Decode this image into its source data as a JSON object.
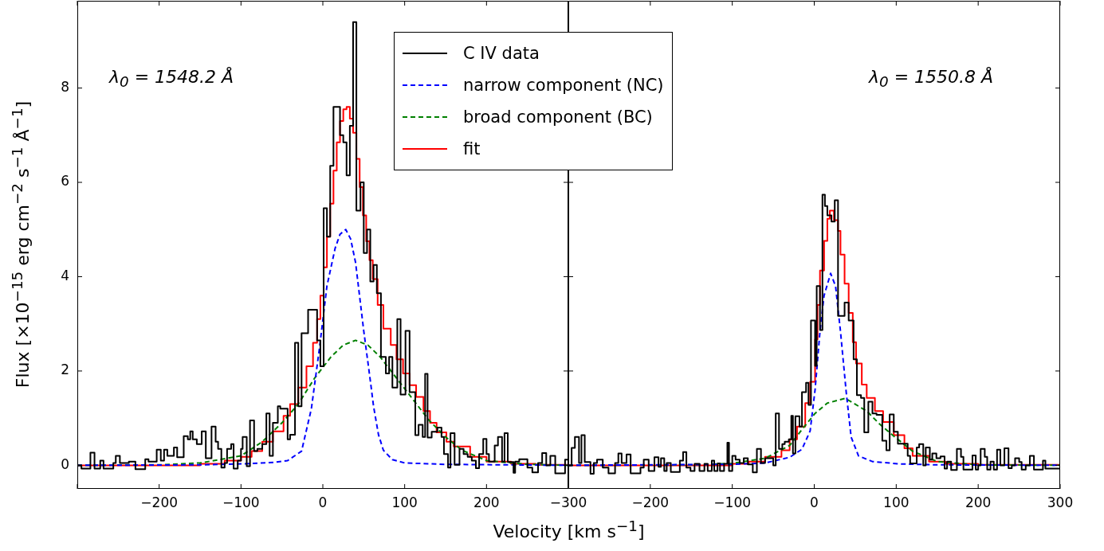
{
  "chart_data": [
    {
      "type": "step",
      "xlabel": "Velocity [km s$^{−1}$]",
      "ylabel": "Flux [×10$^{−15}$ erg cm$^{−2}$ s$^{−1}$ Å$^{−1}$]",
      "annotations": [
        "λ$_{0}$ = 1548.2 Å"
      ],
      "legend": "top right",
      "grid": false,
      "xlim": [
        -300,
        300
      ],
      "xticks": [
        {
          "value": -300,
          "label": null
        },
        {
          "value": -200,
          "label": "−200"
        },
        {
          "value": -100,
          "label": "−100"
        },
        0,
        100,
        200,
        {
          "value": 300,
          "label": null
        }
      ],
      "ylim": [
        -0.5,
        9.85
      ],
      "yticks": [
        0,
        2,
        4,
        6,
        8
      ],
      "series": [
        {
          "name": "C IV data",
          "color": "#000000",
          "x": [
            -300,
            -295,
            -284,
            -279,
            -272,
            -268,
            -256,
            -253,
            -248,
            -237,
            -229,
            -217,
            -213,
            -203,
            -198,
            -194,
            -190,
            -182,
            -178,
            -170,
            -165,
            -162,
            -159,
            -154,
            -148,
            -143,
            -136,
            -131,
            -128,
            -124,
            -120,
            -117,
            -112,
            -109,
            -104,
            -100,
            -98,
            -93,
            -89,
            -84,
            -80,
            -74,
            -69,
            -65,
            -61,
            -55,
            -52,
            -43,
            -40,
            -34,
            -30,
            -26,
            -18,
            -7,
            -3,
            1,
            5,
            9,
            13,
            17,
            21,
            25,
            29,
            33,
            37,
            41,
            46,
            50,
            54,
            58,
            62,
            66,
            71,
            77,
            81,
            85,
            91,
            95,
            101,
            106,
            113,
            117,
            122,
            125,
            128,
            133,
            140,
            145,
            148,
            153,
            156,
            161,
            167,
            172,
            177,
            182,
            187,
            191,
            196,
            200,
            203,
            210,
            214,
            219,
            222,
            226,
            233,
            235,
            240,
            250,
            256,
            263,
            268,
            273,
            278,
            284,
            296,
            300
          ],
          "values": [
            0,
            -0.07,
            0.27,
            -0.07,
            0.1,
            -0.07,
            0.05,
            0.2,
            0.05,
            0.08,
            -0.08,
            0.13,
            0.08,
            0.33,
            0.1,
            0.33,
            0.2,
            0.38,
            0.17,
            0.62,
            0.55,
            0.72,
            0.55,
            0.45,
            0.72,
            0.15,
            0.82,
            0.5,
            0.35,
            -0.05,
            0.05,
            0.35,
            0.45,
            -0.07,
            0.1,
            0.35,
            0.6,
            -0.02,
            0.95,
            0.3,
            0.35,
            0.45,
            1.1,
            0.2,
            0.9,
            1.25,
            1.2,
            0.55,
            0.65,
            2.6,
            1.25,
            2.8,
            3.3,
            2.65,
            2.1,
            5.45,
            4.85,
            6.35,
            7.6,
            7.6,
            7.0,
            6.85,
            6.15,
            7.2,
            9.4,
            5.4,
            6.0,
            4.5,
            5.0,
            3.9,
            4.25,
            3.65,
            2.3,
            1.95,
            2.3,
            1.65,
            3.1,
            1.5,
            2.85,
            1.55,
            0.64,
            0.86,
            0.6,
            1.94,
            0.59,
            0.71,
            0.8,
            0.6,
            0.24,
            -0.05,
            0.68,
            0.01,
            0.35,
            0.24,
            0.18,
            0.1,
            -0.06,
            0.24,
            0.56,
            0.24,
            0.08,
            0.42,
            0.6,
            0.08,
            0.68,
            0.07,
            -0.16,
            0.08,
            0.13,
            -0.05,
            -0.15,
            0.05,
            0.26,
            0,
            0.2,
            -0.17,
            0.12,
            0.12
          ]
        },
        {
          "name": "narrow component (NC)",
          "type": "line",
          "line_style": "dashed",
          "color": "#0000ff",
          "x": [
            -300,
            -150,
            -100,
            -60,
            -43,
            -26,
            -14,
            -4,
            5,
            15,
            21,
            28,
            34,
            40,
            50,
            58,
            62,
            68,
            74,
            85,
            100,
            150,
            300
          ],
          "values": [
            0,
            0.01,
            0.03,
            0.06,
            0.1,
            0.3,
            1.2,
            2.5,
            3.8,
            4.6,
            4.9,
            5.0,
            4.8,
            4.3,
            2.85,
            1.8,
            1.25,
            0.65,
            0.32,
            0.12,
            0.05,
            0.02,
            0
          ]
        },
        {
          "name": "broad component (BC)",
          "type": "line",
          "line_style": "dashed",
          "color": "#008000",
          "x": [
            -300,
            -200,
            -150,
            -100,
            -74,
            -50,
            -30,
            -10,
            10,
            25,
            40,
            55,
            70,
            90,
            110,
            130,
            150,
            170,
            200,
            250,
            300
          ],
          "values": [
            0,
            0.01,
            0.05,
            0.2,
            0.5,
            0.9,
            1.3,
            1.85,
            2.3,
            2.55,
            2.65,
            2.55,
            2.3,
            1.85,
            1.4,
            0.95,
            0.6,
            0.32,
            0.1,
            0.02,
            0
          ]
        },
        {
          "name": "fit",
          "color": "#ff0000",
          "x": [
            -300,
            -150,
            -120,
            -100,
            -87,
            -74,
            -61,
            -48,
            -40,
            -30,
            -20,
            -12,
            -7,
            -3,
            1,
            5,
            9,
            13,
            17,
            21,
            25,
            29,
            33,
            37,
            41,
            45,
            49,
            53,
            57,
            61,
            67,
            74,
            83,
            90,
            98,
            106,
            114,
            123,
            131,
            139,
            151,
            160,
            180,
            200,
            230,
            260,
            300
          ],
          "values": [
            0,
            0.03,
            0.1,
            0.18,
            0.3,
            0.5,
            0.72,
            1.05,
            1.3,
            1.65,
            2.1,
            2.6,
            3.1,
            3.6,
            4.2,
            4.85,
            5.55,
            6.25,
            6.85,
            7.3,
            7.55,
            7.6,
            7.35,
            7.05,
            6.5,
            5.9,
            5.3,
            4.75,
            4.35,
            3.95,
            3.4,
            2.9,
            2.55,
            2.25,
            1.95,
            1.7,
            1.45,
            1.15,
            0.9,
            0.7,
            0.5,
            0.4,
            0.18,
            0.08,
            0.03,
            0.01,
            0
          ]
        }
      ]
    },
    {
      "type": "step",
      "annotations": [
        "λ$_{0}$ = 1550.8 Å"
      ],
      "grid": false,
      "tick_labels": "x",
      "xlim": [
        -300,
        300
      ],
      "xticks": [
        {
          "value": -300,
          "label": "−300"
        },
        {
          "value": -200,
          "label": "−200"
        },
        {
          "value": -100,
          "label": "−100"
        },
        0,
        100,
        200,
        300
      ],
      "ylim": [
        -0.5,
        9.85
      ],
      "yticks": [
        0,
        2,
        4,
        6,
        8
      ],
      "series": [
        {
          "color": "#000000",
          "x": [
            -300,
            -296,
            -292,
            -287,
            -284,
            -280,
            -273,
            -269,
            -265,
            -258,
            -251,
            -243,
            -239,
            -235,
            -229,
            -224,
            -212,
            -208,
            -202,
            -195,
            -190,
            -187,
            -183,
            -180,
            -175,
            -164,
            -160,
            -156,
            -151,
            -146,
            -140,
            -134,
            -130,
            -125,
            -122,
            -118,
            -115,
            -110,
            -106,
            -104,
            -100,
            -96,
            -91,
            -86,
            -81,
            -75,
            -70,
            -65,
            -60,
            -50,
            -47,
            -43,
            -39,
            -36,
            -31,
            -28,
            -26,
            -23,
            -18,
            -15,
            -10,
            -7,
            -4,
            1,
            3,
            7,
            10,
            13,
            16,
            21,
            25,
            29,
            37,
            42,
            48,
            52,
            57,
            61,
            66,
            71,
            76,
            83,
            88,
            92,
            97,
            102,
            114,
            117,
            125,
            128,
            133,
            136,
            141,
            144,
            149,
            154,
            159,
            162,
            167,
            174,
            179,
            182,
            193,
            197,
            200,
            203,
            208,
            211,
            215,
            219,
            223,
            227,
            232,
            237,
            241,
            245,
            250,
            253,
            258,
            263,
            268,
            279,
            282,
            300
          ],
          "values": [
            0,
            0.37,
            0.6,
            0.05,
            0.64,
            0.07,
            -0.18,
            0.05,
            0.12,
            -0.05,
            -0.17,
            0.05,
            0.25,
            0.05,
            0.23,
            -0.17,
            -0.05,
            0.12,
            -0.12,
            0.17,
            -0.03,
            0.15,
            -0.12,
            0.05,
            -0.14,
            0.1,
            0.28,
            -0.05,
            -0.12,
            0.03,
            -0.12,
            0.03,
            -0.12,
            0.1,
            -0.12,
            0.04,
            -0.12,
            0.03,
            0.48,
            -0.12,
            0.2,
            0.12,
            0.05,
            0.15,
            0.02,
            -0.15,
            0.35,
            0.05,
            0.15,
            0,
            1.1,
            0.35,
            0.45,
            0.5,
            0.55,
            1.05,
            0.25,
            1.04,
            0.82,
            1.55,
            1.75,
            1.28,
            3.07,
            2.11,
            3.8,
            2.87,
            5.74,
            5.5,
            5.3,
            5.17,
            5.62,
            3.17,
            3.45,
            3.07,
            2.25,
            1.49,
            1.43,
            0.7,
            1.35,
            1.1,
            1.07,
            0.52,
            0.32,
            1.08,
            0.71,
            0.46,
            0.2,
            0.04,
            0.38,
            0.45,
            0,
            0.38,
            0.12,
            0.25,
            0.15,
            0.19,
            -0.07,
            0.08,
            -0.1,
            0.35,
            0.18,
            -0.09,
            0.21,
            -0.09,
            0,
            0.35,
            0.18,
            -0.09,
            0.08,
            -0.09,
            0.33,
            0,
            0.36,
            -0.06,
            0,
            0.15,
            0.07,
            -0.09,
            0,
            0.2,
            -0.09,
            0.1,
            -0.07,
            -0.07
          ]
        },
        {
          "type": "line",
          "line_style": "dashed",
          "color": "#0000ff",
          "x": [
            -300,
            -100,
            -60,
            -30,
            -15,
            -5,
            1,
            7,
            12,
            20,
            26,
            32,
            39,
            45,
            54,
            71,
            103,
            150,
            300
          ],
          "values": [
            0,
            0.02,
            0.05,
            0.17,
            0.34,
            0.73,
            1.6,
            2.84,
            3.6,
            4.07,
            3.8,
            2.84,
            1.55,
            0.6,
            0.2,
            0.08,
            0.03,
            0.01,
            0
          ]
        },
        {
          "type": "line",
          "line_style": "dashed",
          "color": "#008000",
          "x": [
            -300,
            -150,
            -100,
            -60,
            -30,
            -15,
            1,
            16,
            38,
            64,
            80,
            97,
            120,
            150,
            200,
            300
          ],
          "values": [
            0,
            0.01,
            0.04,
            0.15,
            0.42,
            0.76,
            1.1,
            1.32,
            1.42,
            1.15,
            0.87,
            0.62,
            0.3,
            0.08,
            0.01,
            0
          ]
        },
        {
          "color": "#ff0000",
          "x": [
            -300,
            -150,
            -100,
            -80,
            -60,
            -40,
            -30,
            -21,
            -11,
            -5,
            1,
            4,
            7,
            12,
            16,
            19,
            24,
            29,
            32,
            37,
            42,
            47,
            51,
            58,
            64,
            74,
            84,
            97,
            110,
            120,
            140,
            160,
            200,
            300
          ],
          "values": [
            0,
            0,
            0.03,
            0.08,
            0.18,
            0.32,
            0.55,
            0.82,
            1.32,
            1.77,
            2.67,
            3.4,
            4.13,
            4.76,
            5.23,
            5.4,
            5.2,
            4.97,
            4.47,
            3.85,
            3.23,
            2.61,
            2.16,
            1.71,
            1.43,
            1.15,
            0.92,
            0.64,
            0.36,
            0.2,
            0.08,
            0.03,
            0.01,
            0
          ]
        }
      ]
    }
  ]
}
